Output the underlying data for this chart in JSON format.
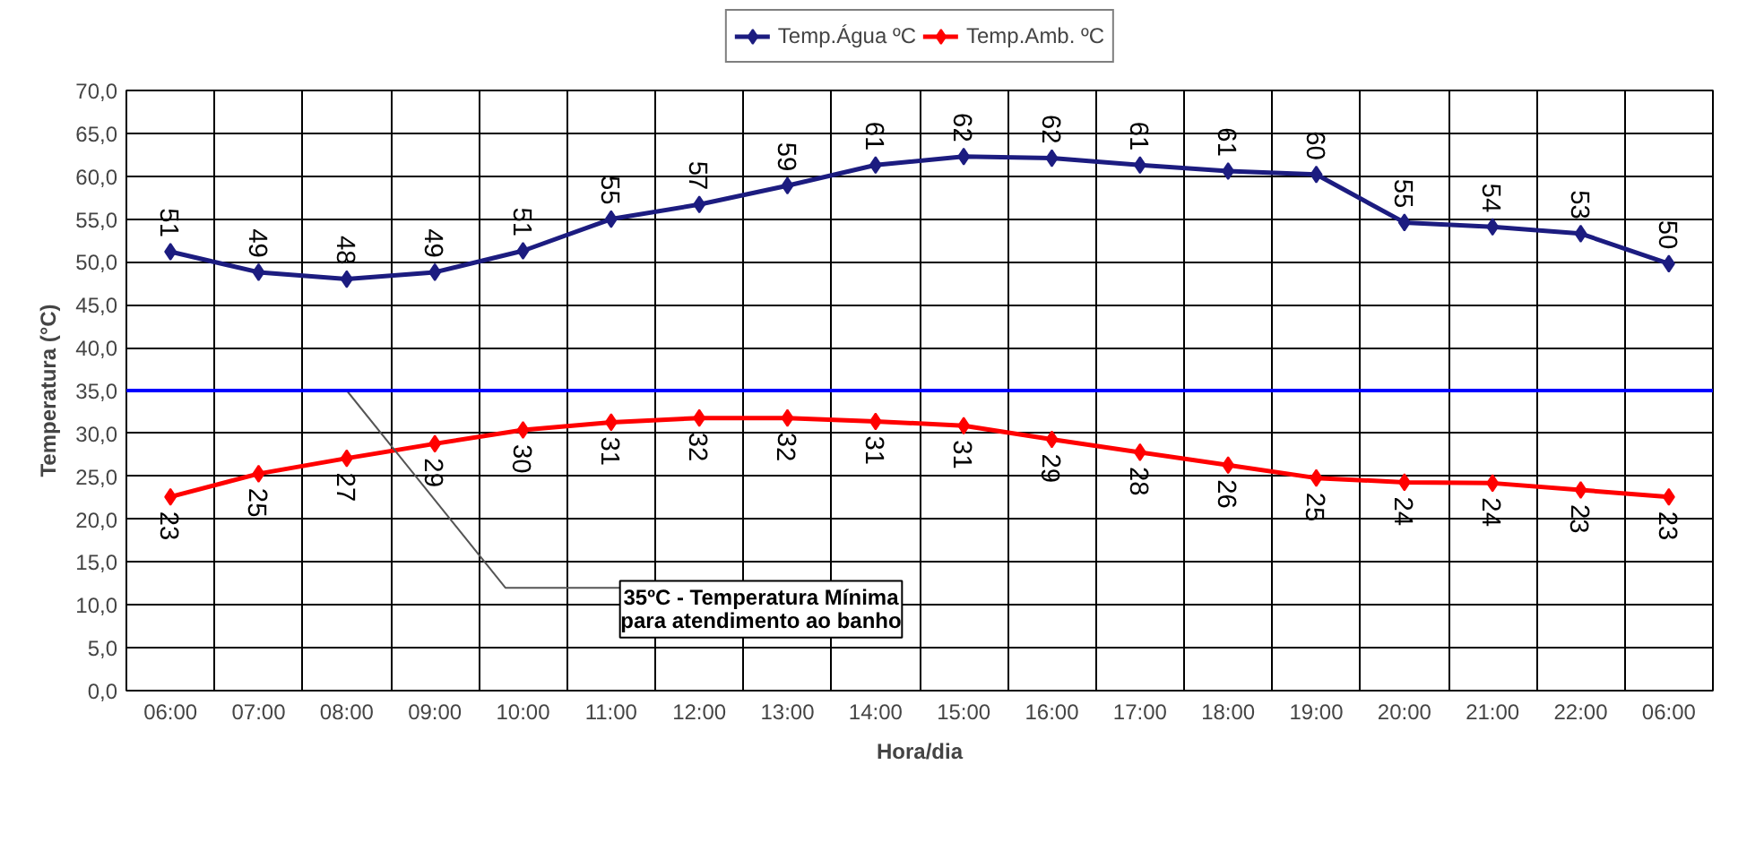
{
  "chart_data": {
    "type": "line",
    "xlabel": "Hora/dia",
    "ylabel": "Temperatura (°C)",
    "categories": [
      "06:00",
      "07:00",
      "08:00",
      "09:00",
      "10:00",
      "11:00",
      "12:00",
      "13:00",
      "14:00",
      "15:00",
      "16:00",
      "17:00",
      "18:00",
      "19:00",
      "20:00",
      "21:00",
      "22:00",
      "06:00"
    ],
    "series": [
      {
        "name": "Temp.Água ºC",
        "color": "#1c1c80",
        "values": [
          51.2,
          48.8,
          48.0,
          48.8,
          51.3,
          55.0,
          56.7,
          58.9,
          61.3,
          62.3,
          62.1,
          61.3,
          60.6,
          60.2,
          54.6,
          54.1,
          53.3,
          49.8
        ],
        "value_labels": [
          "51",
          "49",
          "48",
          "49",
          "51",
          "55",
          "57",
          "59",
          "61",
          "62",
          "62",
          "61",
          "61",
          "60",
          "55",
          "54",
          "53",
          "50"
        ]
      },
      {
        "name": "Temp.Amb. ºC",
        "color": "#ff0000",
        "values": [
          22.6,
          25.3,
          27.1,
          28.8,
          30.4,
          31.3,
          31.8,
          31.8,
          31.4,
          30.9,
          29.3,
          27.8,
          26.3,
          24.8,
          24.3,
          24.2,
          23.4,
          22.6
        ],
        "value_labels": [
          "23",
          "25",
          "27",
          "29",
          "30",
          "31",
          "32",
          "32",
          "31",
          "31",
          "29",
          "28",
          "26",
          "25",
          "24",
          "24",
          "23",
          "23"
        ]
      }
    ],
    "ylim": [
      0,
      70
    ],
    "yticks": [
      {
        "value": 0,
        "label": "0,0"
      },
      {
        "value": 5,
        "label": "5,0"
      },
      {
        "value": 10,
        "label": "10,0"
      },
      {
        "value": 15,
        "label": "15,0"
      },
      {
        "value": 20,
        "label": "20,0"
      },
      {
        "value": 25,
        "label": "25,0"
      },
      {
        "value": 30,
        "label": "30,0"
      },
      {
        "value": 35,
        "label": "35,0"
      },
      {
        "value": 40,
        "label": "40,0"
      },
      {
        "value": 45,
        "label": "45,0"
      },
      {
        "value": 50,
        "label": "50,0"
      },
      {
        "value": 55,
        "label": "55,0"
      },
      {
        "value": 60,
        "label": "60,0"
      },
      {
        "value": 65,
        "label": "65,0"
      },
      {
        "value": 70,
        "label": "70,0"
      }
    ],
    "ref_lines": [
      {
        "axis": "y",
        "value": 35,
        "color": "#0000ff",
        "label": "35ºC - Temperatura Mínima\npara atendimento ao banho"
      }
    ],
    "grid": true,
    "legend": "top",
    "marker": "diamond",
    "line_style": "solid"
  }
}
